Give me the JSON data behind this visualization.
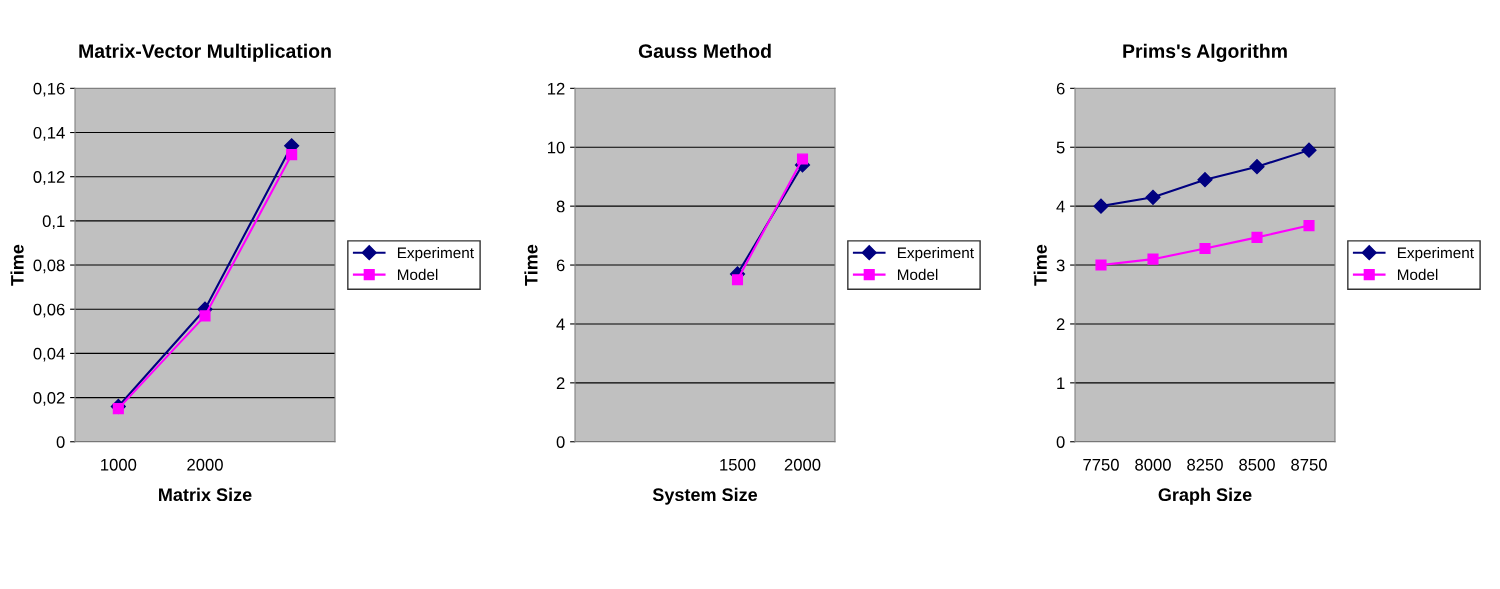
{
  "chart_data": [
    {
      "type": "line",
      "title": "Matrix-Vector Multiplication",
      "xlabel": "Matrix Size",
      "ylabel": "Time",
      "categories": [
        "1000",
        "2000",
        null
      ],
      "series": [
        {
          "name": "Experiment",
          "color": "#000080",
          "marker": "diamond",
          "values": [
            0.016,
            0.06,
            0.134
          ]
        },
        {
          "name": "Model",
          "color": "#ff00ff",
          "marker": "square",
          "values": [
            0.015,
            0.057,
            0.13
          ]
        }
      ],
      "ylim": [
        0,
        0.16
      ],
      "yticks": [
        0,
        {
          "value": 0.02,
          "label": "0,02"
        },
        {
          "value": 0.04,
          "label": "0,04"
        },
        {
          "value": 0.06,
          "label": "0,06"
        },
        {
          "value": 0.08,
          "label": "0,08"
        },
        {
          "value": 0.1,
          "label": "0,1"
        },
        {
          "value": 0.12,
          "label": "0,12"
        },
        {
          "value": 0.14,
          "label": "0,14"
        },
        {
          "value": 0.16,
          "label": "0,16"
        }
      ],
      "grid": "y",
      "legend": "right"
    },
    {
      "type": "line",
      "title": "Gauss Method",
      "xlabel": "System Size",
      "ylabel": "Time",
      "categories": [
        null,
        null,
        "1500",
        "2000"
      ],
      "series": [
        {
          "name": "Experiment",
          "color": "#000080",
          "marker": "diamond",
          "values": [
            null,
            null,
            5.7,
            9.4
          ]
        },
        {
          "name": "Model",
          "color": "#ff00ff",
          "marker": "square",
          "values": [
            null,
            null,
            5.5,
            9.6
          ]
        }
      ],
      "ylim": [
        0,
        12
      ],
      "yticks": [
        0,
        2,
        4,
        6,
        8,
        10,
        12
      ],
      "grid": "y",
      "legend": "right"
    },
    {
      "type": "line",
      "title": "Prims's Algorithm",
      "xlabel": "Graph Size",
      "ylabel": "Time",
      "categories": [
        "7750",
        "8000",
        "8250",
        "8500",
        "8750"
      ],
      "series": [
        {
          "name": "Experiment",
          "color": "#000080",
          "marker": "diamond",
          "values": [
            4.0,
            4.15,
            4.45,
            4.67,
            4.95
          ]
        },
        {
          "name": "Model",
          "color": "#ff00ff",
          "marker": "square",
          "values": [
            3.0,
            3.1,
            3.28,
            3.47,
            3.67
          ]
        }
      ],
      "ylim": [
        0,
        6
      ],
      "yticks": [
        0,
        1,
        2,
        3,
        4,
        5,
        6
      ],
      "grid": "y",
      "legend": "right"
    }
  ]
}
